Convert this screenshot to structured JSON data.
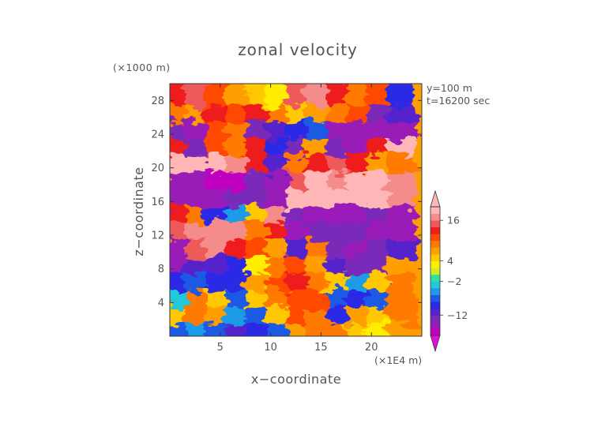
{
  "chart_data": {
    "type": "heatmap",
    "title": "zonal velocity",
    "xlabel": "x−coordinate",
    "ylabel": "z−coordinate",
    "x_unit": "(×1E4 m)",
    "y_unit": "(×1000 m)",
    "annotations": [
      "y=100 m",
      "t=16200 sec"
    ],
    "xlim": [
      0,
      25
    ],
    "ylim": [
      0,
      30
    ],
    "x_ticks": [
      5,
      10,
      15,
      20
    ],
    "y_ticks": [
      4,
      8,
      12,
      16,
      20,
      24,
      28
    ],
    "colorbar": {
      "tick_labels": [
        "16",
        "4",
        "−2",
        "−12"
      ],
      "tick_values": [
        16,
        4,
        -2,
        -12
      ],
      "levels": [
        -20,
        -16,
        -14,
        -12,
        -10,
        -8,
        -6,
        -4,
        -2,
        0,
        2,
        4,
        6,
        8,
        10,
        12,
        14,
        16,
        18,
        20
      ],
      "colors": [
        "#c000c0",
        "#9a1ab8",
        "#7a2ab8",
        "#5522cc",
        "#2a2ae6",
        "#1e5ae6",
        "#1e9be6",
        "#22c8dc",
        "#33e0a0",
        "#ccee22",
        "#ffee00",
        "#ffc800",
        "#ff9e00",
        "#ff7a00",
        "#ff4a00",
        "#ee1c1c",
        "#ee5a5a",
        "#f58c8c",
        "#ffb6b6"
      ]
    },
    "description_grid": {
      "x_centers_1e4m": [
        1,
        3,
        5,
        7,
        9,
        11,
        13,
        15,
        17,
        19,
        21,
        23
      ],
      "z_centers_1000m": [
        1,
        3,
        5,
        7,
        9,
        11,
        13,
        15,
        17,
        19,
        21,
        23,
        25,
        27,
        29
      ],
      "values": [
        [
          -8,
          -6,
          -8,
          -12,
          -10,
          -8,
          6,
          8,
          8,
          4,
          2,
          6
        ],
        [
          4,
          8,
          6,
          -6,
          -8,
          4,
          10,
          8,
          -10,
          6,
          4,
          8
        ],
        [
          -4,
          8,
          4,
          -8,
          4,
          8,
          10,
          10,
          -8,
          -10,
          -8,
          8
        ],
        [
          -10,
          -8,
          -10,
          -10,
          6,
          10,
          12,
          8,
          4,
          -6,
          4,
          8
        ],
        [
          -16,
          -12,
          -12,
          -10,
          2,
          8,
          10,
          6,
          -12,
          -14,
          -14,
          6
        ],
        [
          -16,
          14,
          16,
          12,
          10,
          6,
          -12,
          8,
          -14,
          -16,
          -14,
          -12
        ],
        [
          14,
          16,
          16,
          16,
          8,
          12,
          -16,
          -14,
          -14,
          -14,
          -16,
          -16
        ],
        [
          12,
          8,
          -10,
          -6,
          4,
          16,
          -14,
          -16,
          -16,
          -16,
          -14,
          -16
        ],
        [
          -16,
          -16,
          -16,
          -14,
          -14,
          -16,
          18,
          18,
          18,
          18,
          18,
          16
        ],
        [
          -16,
          -16,
          -18,
          -18,
          -14,
          -16,
          14,
          18,
          16,
          18,
          18,
          16
        ],
        [
          18,
          18,
          18,
          16,
          12,
          -12,
          8,
          12,
          14,
          12,
          6,
          8
        ],
        [
          12,
          -14,
          10,
          8,
          12,
          -10,
          -14,
          6,
          -14,
          -16,
          12,
          18
        ],
        [
          -14,
          -16,
          10,
          8,
          -14,
          -12,
          -10,
          -8,
          -16,
          -16,
          -16,
          -16
        ],
        [
          8,
          6,
          12,
          10,
          12,
          8,
          4,
          6,
          8,
          10,
          -14,
          -12
        ],
        [
          12,
          14,
          10,
          6,
          4,
          2,
          14,
          16,
          12,
          8,
          10,
          -10
        ]
      ]
    }
  }
}
